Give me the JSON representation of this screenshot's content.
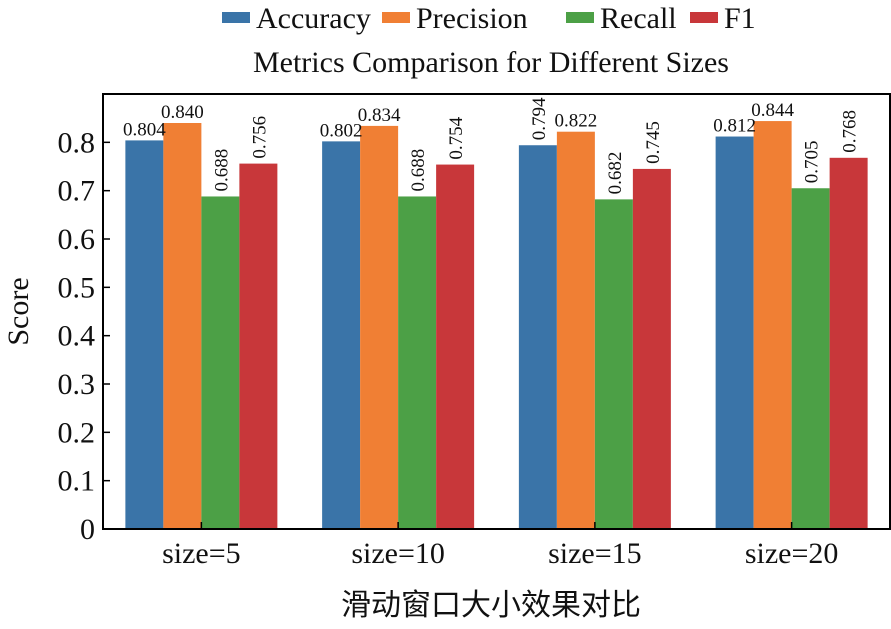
{
  "chart_data": {
    "type": "bar",
    "title": "Metrics Comparison for Different Sizes",
    "xlabel": "滑动窗口大小效果对比",
    "ylabel": "Score",
    "ylim": [
      0,
      0.9
    ],
    "yticks": [
      0,
      0.1,
      0.2,
      0.3,
      0.4,
      0.5,
      0.6,
      0.7,
      0.8
    ],
    "ytick_labels": [
      "0",
      "0.1",
      "0.2",
      "0.3",
      "0.4",
      "0.5",
      "0.6",
      "0.7",
      "0.8"
    ],
    "categories": [
      "size=5",
      "size=10",
      "size=15",
      "size=20"
    ],
    "legend_position": "top",
    "grid": false,
    "series": [
      {
        "name": "Accuracy",
        "color": "#3A74A8",
        "values": [
          0.804,
          0.802,
          0.794,
          0.812
        ],
        "labels": [
          "0.804",
          "0.802",
          "0.794",
          "0.812"
        ]
      },
      {
        "name": "Precision",
        "color": "#F07F34",
        "values": [
          0.84,
          0.834,
          0.822,
          0.844
        ],
        "labels": [
          "0.840",
          "0.834",
          "0.822",
          "0.844"
        ]
      },
      {
        "name": "Recall",
        "color": "#4CA046",
        "values": [
          0.688,
          0.688,
          0.682,
          0.705
        ],
        "labels": [
          "0.688",
          "0.688",
          "0.682",
          "0.705"
        ]
      },
      {
        "name": "F1",
        "color": "#C8373A",
        "values": [
          0.756,
          0.754,
          0.745,
          0.768
        ],
        "labels": [
          "0.756",
          "0.754",
          "0.745",
          "0.768"
        ]
      }
    ]
  }
}
